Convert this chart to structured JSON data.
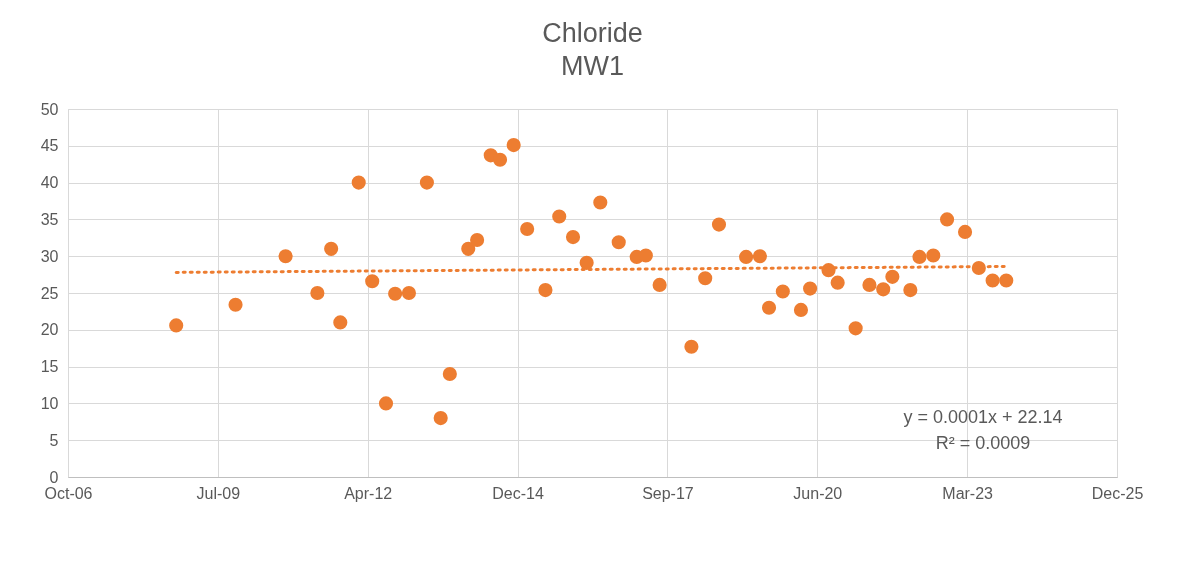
{
  "chart_data": {
    "type": "scatter",
    "title": "Chloride",
    "subtitle": "MW1",
    "grid": true,
    "marker": "circle",
    "ylim": [
      0,
      50
    ],
    "yticks": [
      0,
      5,
      10,
      15,
      20,
      25,
      30,
      35,
      40,
      45,
      50
    ],
    "xlim": [
      "2006-10-10",
      "2025-12-09"
    ],
    "xticks": [
      {
        "value": "2006-10-10",
        "label": "Oct-06"
      },
      {
        "value": "2009-07-06",
        "label": "Jul-09"
      },
      {
        "value": "2012-04-01",
        "label": "Apr-12"
      },
      {
        "value": "2014-12-27",
        "label": "Dec-14"
      },
      {
        "value": "2017-09-22",
        "label": "Sep-17"
      },
      {
        "value": "2020-06-18",
        "label": "Jun-20"
      },
      {
        "value": "2023-03-15",
        "label": "Mar-23"
      },
      {
        "value": "2025-12-09",
        "label": "Dec-25"
      }
    ],
    "annotations": [
      "y = 0.0001x + 22.14",
      "R² = 0.0009"
    ],
    "series": [
      {
        "type": "scatter",
        "color": "#ed7d31",
        "x": [
          "2008-10",
          "2009-11",
          "2010-10",
          "2011-05",
          "2011-08",
          "2011-10",
          "2012-02",
          "2012-05",
          "2012-08",
          "2012-10",
          "2013-01",
          "2013-05",
          "2013-08",
          "2013-10",
          "2014-02",
          "2014-04",
          "2014-07",
          "2014-09",
          "2014-12",
          "2015-03",
          "2015-07",
          "2015-10",
          "2016-01",
          "2016-04",
          "2016-07",
          "2016-11",
          "2017-03",
          "2017-05",
          "2017-08",
          "2018-03",
          "2018-06",
          "2018-09",
          "2019-03",
          "2019-06",
          "2019-08",
          "2019-11",
          "2020-03",
          "2020-05",
          "2020-09",
          "2020-11",
          "2021-03",
          "2021-06",
          "2021-09",
          "2021-11",
          "2022-03",
          "2022-05",
          "2022-08",
          "2022-11",
          "2023-03",
          "2023-06",
          "2023-09",
          "2023-12"
        ],
        "values": [
          20.6,
          23.4,
          30,
          25,
          31,
          21,
          40,
          26.6,
          10,
          24.9,
          25,
          40,
          8,
          14,
          31,
          32.2,
          43.7,
          43.1,
          45.1,
          33.7,
          25.4,
          35.4,
          32.6,
          29.1,
          37.3,
          31.9,
          29.9,
          30.1,
          26.1,
          17.7,
          27,
          34.3,
          29.9,
          30,
          23,
          25.2,
          22.7,
          25.6,
          28.1,
          26.4,
          20.2,
          26.1,
          25.5,
          27.2,
          25.4,
          29.9,
          30.1,
          35,
          33.3,
          28.4,
          26.7,
          26.7
        ]
      },
      {
        "type": "line",
        "color": "#ed7d31",
        "line_style": "dotted",
        "marker": "none",
        "x": [
          "2008-10",
          "2023-12"
        ],
        "values": [
          27.8,
          28.6
        ]
      }
    ]
  }
}
